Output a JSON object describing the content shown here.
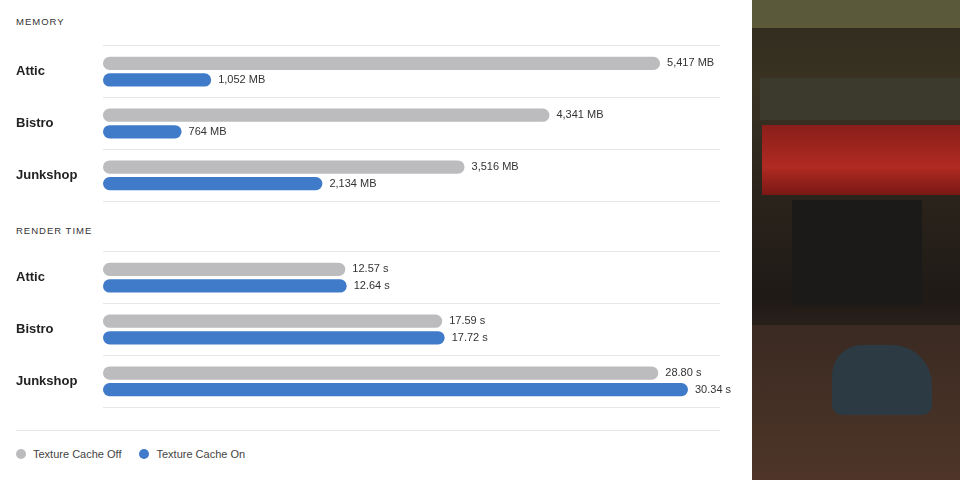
{
  "chart_data": [
    {
      "type": "bar",
      "title": "MEMORY",
      "orientation": "horizontal",
      "categories": [
        "Attic",
        "Bistro",
        "Junkshop"
      ],
      "series": [
        {
          "name": "Texture Cache Off",
          "color": "#bcbcbf",
          "values": [
            5417,
            4341,
            3516
          ],
          "value_labels": [
            "5,417 MB",
            "4,341 MB",
            "3,516 MB"
          ]
        },
        {
          "name": "Texture Cache On",
          "color": "#3f7bc9",
          "values": [
            1052,
            764,
            2134
          ],
          "value_labels": [
            "1,052 MB",
            "764 MB",
            "2,134 MB"
          ]
        }
      ],
      "xlim": [
        0,
        6000
      ],
      "grid": true,
      "data_labels": true,
      "tick_labels": "y"
    },
    {
      "type": "bar",
      "title": "RENDER TIME",
      "orientation": "horizontal",
      "categories": [
        "Attic",
        "Bistro",
        "Junkshop"
      ],
      "series": [
        {
          "name": "Texture Cache Off",
          "color": "#bcbcbf",
          "values": [
            12.57,
            17.59,
            28.8
          ],
          "value_labels": [
            "12.57 s",
            "17.59 s",
            "28.80 s"
          ]
        },
        {
          "name": "Texture Cache On",
          "color": "#3f7bc9",
          "values": [
            12.64,
            17.72,
            30.34
          ],
          "value_labels": [
            "12.64 s",
            "17.72 s",
            "30.34 s"
          ]
        }
      ],
      "xlim": [
        0,
        32
      ],
      "grid": true,
      "data_labels": true,
      "tick_labels": "y",
      "legend": "bottom-left"
    }
  ]
}
